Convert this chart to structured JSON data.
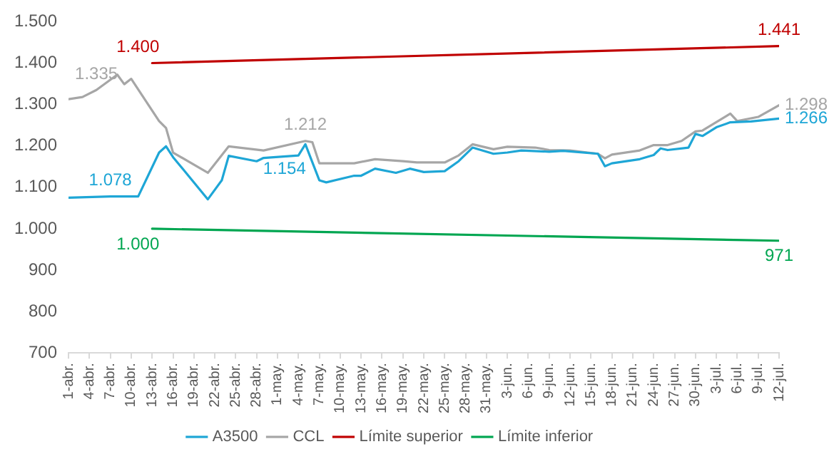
{
  "chart_data": {
    "type": "line",
    "legend": "bottom",
    "grid": false,
    "xlim": [
      "--04-01",
      "--07-12"
    ],
    "xticks": [
      {
        "value": "--04-01",
        "label": "1-abr."
      },
      {
        "value": "--04-04",
        "label": "4-abr."
      },
      {
        "value": "--04-07",
        "label": "7-abr."
      },
      {
        "value": "--04-10",
        "label": "10-abr."
      },
      {
        "value": "--04-13",
        "label": "13-abr."
      },
      {
        "value": "--04-16",
        "label": "16-abr."
      },
      {
        "value": "--04-19",
        "label": "19-abr."
      },
      {
        "value": "--04-22",
        "label": "22-abr."
      },
      {
        "value": "--04-25",
        "label": "25-abr."
      },
      {
        "value": "--04-28",
        "label": "28-abr."
      },
      {
        "value": "--05-01",
        "label": "1-may."
      },
      {
        "value": "--05-04",
        "label": "4-may."
      },
      {
        "value": "--05-07",
        "label": "7-may."
      },
      {
        "value": "--05-10",
        "label": "10-may."
      },
      {
        "value": "--05-13",
        "label": "13-may."
      },
      {
        "value": "--05-16",
        "label": "16-may."
      },
      {
        "value": "--05-19",
        "label": "19-may."
      },
      {
        "value": "--05-22",
        "label": "22-may."
      },
      {
        "value": "--05-25",
        "label": "25-may."
      },
      {
        "value": "--05-28",
        "label": "28-may."
      },
      {
        "value": "--05-31",
        "label": "31-may."
      },
      {
        "value": "--06-03",
        "label": "3-jun."
      },
      {
        "value": "--06-06",
        "label": "6-jun."
      },
      {
        "value": "--06-09",
        "label": "9-jun."
      },
      {
        "value": "--06-12",
        "label": "12-jun."
      },
      {
        "value": "--06-15",
        "label": "15-jun."
      },
      {
        "value": "--06-18",
        "label": "18-jun."
      },
      {
        "value": "--06-21",
        "label": "21-jun."
      },
      {
        "value": "--06-24",
        "label": "24-jun."
      },
      {
        "value": "--06-27",
        "label": "27-jun."
      },
      {
        "value": "--06-30",
        "label": "30-jun."
      },
      {
        "value": "--07-03",
        "label": "3-jul."
      },
      {
        "value": "--07-06",
        "label": "6-jul."
      },
      {
        "value": "--07-09",
        "label": "9-jul."
      },
      {
        "value": "--07-12",
        "label": "12-jul."
      }
    ],
    "ylim": [
      700,
      1500
    ],
    "yticks": [
      700,
      800,
      900,
      {
        "value": 1000,
        "label": "1.000"
      },
      {
        "value": 1100,
        "label": "1.100"
      },
      {
        "value": 1200,
        "label": "1.200"
      },
      {
        "value": 1300,
        "label": "1.300"
      },
      {
        "value": 1400,
        "label": "1.400"
      },
      {
        "value": 1500,
        "label": "1.500"
      }
    ],
    "series": [
      {
        "name": "A3500",
        "color": "#1ea6d6",
        "x": [
          "--04-01",
          "--04-07",
          "--04-11",
          "--04-14",
          "--04-15",
          "--04-16",
          "--04-21",
          "--04-23",
          "--04-24",
          "--04-28",
          "--04-29",
          "--05-04",
          "--05-05",
          "--05-07",
          "--05-08",
          "--05-12",
          "--05-13",
          "--05-15",
          "--05-18",
          "--05-20",
          "--05-22",
          "--05-25",
          "--05-27",
          "--05-29",
          "--06-01",
          "--06-03",
          "--06-05",
          "--06-09",
          "--06-11",
          "--06-16",
          "--06-17",
          "--06-18",
          "--06-22",
          "--06-24",
          "--06-25",
          "--06-26",
          "--06-29",
          "--06-30",
          "--07-01",
          "--07-03",
          "--07-05",
          "--07-08",
          "--07-12"
        ],
        "values": [
          1075,
          1078,
          1078,
          1184,
          1199,
          1173,
          1071,
          1117,
          1176,
          1163,
          1171,
          1177,
          1204,
          1117,
          1112,
          1128,
          1128,
          1145,
          1135,
          1145,
          1137,
          1139,
          1163,
          1196,
          1181,
          1184,
          1189,
          1186,
          1188,
          1181,
          1151,
          1158,
          1168,
          1178,
          1194,
          1190,
          1196,
          1229,
          1224,
          1245,
          1257,
          1259,
          1266
        ],
        "value_labels": [
          null,
          "1.078",
          null,
          null,
          null,
          null,
          null,
          null,
          null,
          null,
          null,
          null,
          null,
          null,
          null,
          null,
          null,
          null,
          null,
          null,
          null,
          null,
          null,
          null,
          null,
          null,
          null,
          null,
          null,
          null,
          null,
          null,
          null,
          null,
          null,
          null,
          null,
          null,
          null,
          null,
          null,
          null,
          "1.266"
        ]
      },
      {
        "name": "CCL",
        "color": "#a6a6a6",
        "x": [
          "--04-01",
          "--04-03",
          "--04-05",
          "--04-08",
          "--04-09",
          "--04-10",
          "--04-14",
          "--04-15",
          "--04-16",
          "--04-21",
          "--04-24",
          "--04-29",
          "--05-05",
          "--05-06",
          "--05-07",
          "--05-12",
          "--05-15",
          "--05-19",
          "--05-21",
          "--05-25",
          "--05-27",
          "--05-29",
          "--06-01",
          "--06-03",
          "--06-07",
          "--06-09",
          "--06-12",
          "--06-16",
          "--06-17",
          "--06-18",
          "--06-22",
          "--06-24",
          "--06-26",
          "--06-28",
          "--06-30",
          "--07-01",
          "--07-05",
          "--07-06",
          "--07-09",
          "--07-12"
        ],
        "values": [
          1313,
          1318,
          1335,
          1372,
          1349,
          1362,
          1260,
          1243,
          1184,
          1135,
          1199,
          1189,
          1212,
          1209,
          1158,
          1158,
          1168,
          1163,
          1160,
          1160,
          1177,
          1204,
          1192,
          1198,
          1196,
          1190,
          1189,
          1181,
          1170,
          1179,
          1189,
          1202,
          1202,
          1212,
          1235,
          1237,
          1278,
          1260,
          1270,
          1298
        ],
        "value_labels": [
          null,
          null,
          "1.335",
          null,
          null,
          null,
          null,
          null,
          null,
          null,
          null,
          null,
          "1.212",
          null,
          null,
          null,
          null,
          null,
          null,
          null,
          null,
          null,
          null,
          null,
          null,
          null,
          null,
          null,
          null,
          null,
          null,
          null,
          null,
          null,
          null,
          null,
          null,
          null,
          null,
          "1.298"
        ]
      },
      {
        "name": "Límite superior",
        "color": "#c00000",
        "x": [
          "--04-13",
          "--07-12"
        ],
        "values": [
          1400,
          1441
        ],
        "value_labels": [
          "1.400",
          "1.441"
        ]
      },
      {
        "name": "Límite inferior",
        "color": "#00a651",
        "x": [
          "--04-13",
          "--07-12"
        ],
        "values": [
          1000,
          971
        ],
        "value_labels": [
          "1.000",
          "971"
        ]
      }
    ],
    "annotations": [
      {
        "text": "1.154",
        "x": "--05-02",
        "y": 1175
      }
    ]
  }
}
